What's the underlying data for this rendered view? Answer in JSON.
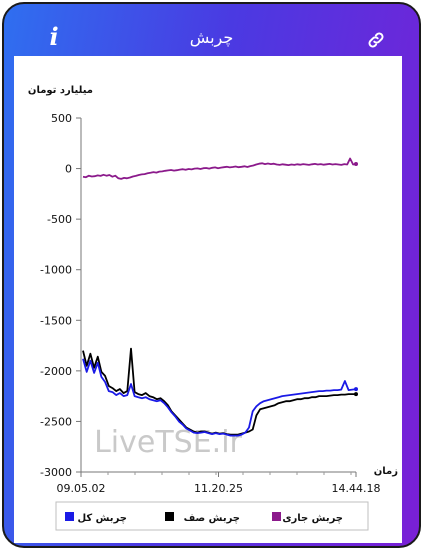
{
  "header": {
    "title": "چربش",
    "info_icon": "info-icon",
    "link_icon": "link-icon"
  },
  "chart_data": {
    "type": "line",
    "ylabel": "میلیارد تومان",
    "xlabel": "زمان",
    "ylim": [
      -3000,
      500
    ],
    "yticks": [
      500,
      0,
      -500,
      -1000,
      -1500,
      -2000,
      -2500,
      -3000
    ],
    "ytick_labels": [
      "500",
      "0",
      "-500",
      "-1000",
      "-1500",
      "-2000",
      "-2500",
      "-3000"
    ],
    "x_tick_labels": [
      "09.05.02",
      "11.20.25",
      "14.44.18"
    ],
    "grid": false,
    "legend_position": "bottom",
    "watermark": "LiveTSE.ir",
    "series": [
      {
        "name": "چربش جاری",
        "color": "#8b1a8b",
        "values": [
          -80,
          -85,
          -70,
          -78,
          -75,
          -68,
          -72,
          -62,
          -70,
          -64,
          -80,
          -70,
          -95,
          -102,
          -92,
          -96,
          -88,
          -78,
          -72,
          -64,
          -58,
          -55,
          -47,
          -42,
          -35,
          -40,
          -30,
          -28,
          -22,
          -18,
          -14,
          -20,
          -16,
          -10,
          -6,
          -12,
          -4,
          -8,
          0,
          2,
          -4,
          4,
          6,
          0,
          8,
          12,
          4,
          10,
          14,
          18,
          12,
          16,
          20,
          14,
          18,
          22,
          16,
          24,
          30,
          40,
          48,
          52,
          44,
          50,
          44,
          48,
          40,
          36,
          42,
          38,
          34,
          40,
          36,
          42,
          38,
          44,
          40,
          36,
          42,
          46,
          40,
          44,
          38,
          42,
          46,
          40,
          44,
          40,
          36,
          44,
          40,
          100,
          40,
          45
        ]
      },
      {
        "name": "چربش صف",
        "color": "#000000",
        "values": [
          -1800,
          -1950,
          -1830,
          -1970,
          -1860,
          -2010,
          -2050,
          -2150,
          -2170,
          -2200,
          -2180,
          -2220,
          -2200,
          -1780,
          -2210,
          -2230,
          -2240,
          -2220,
          -2250,
          -2260,
          -2280,
          -2270,
          -2300,
          -2340,
          -2400,
          -2440,
          -2480,
          -2520,
          -2560,
          -2580,
          -2600,
          -2610,
          -2600,
          -2600,
          -2610,
          -2620,
          -2610,
          -2620,
          -2615,
          -2625,
          -2630,
          -2630,
          -2630,
          -2620,
          -2610,
          -2600,
          -2580,
          -2440,
          -2380,
          -2370,
          -2360,
          -2350,
          -2340,
          -2320,
          -2310,
          -2300,
          -2300,
          -2290,
          -2280,
          -2280,
          -2270,
          -2270,
          -2260,
          -2260,
          -2250,
          -2250,
          -2250,
          -2245,
          -2240,
          -2240,
          -2235,
          -2235,
          -2230,
          -2230,
          -2230
        ]
      },
      {
        "name": "چربش کل",
        "color": "#1a1ae6",
        "values": [
          -1880,
          -2010,
          -1900,
          -2020,
          -1920,
          -2060,
          -2110,
          -2200,
          -2210,
          -2240,
          -2220,
          -2250,
          -2240,
          -2130,
          -2250,
          -2260,
          -2270,
          -2260,
          -2280,
          -2290,
          -2300,
          -2290,
          -2320,
          -2360,
          -2410,
          -2450,
          -2500,
          -2530,
          -2570,
          -2590,
          -2610,
          -2615,
          -2610,
          -2605,
          -2615,
          -2625,
          -2615,
          -2625,
          -2620,
          -2630,
          -2640,
          -2640,
          -2640,
          -2630,
          -2610,
          -2560,
          -2400,
          -2350,
          -2320,
          -2300,
          -2290,
          -2280,
          -2270,
          -2260,
          -2250,
          -2245,
          -2240,
          -2235,
          -2230,
          -2225,
          -2220,
          -2215,
          -2210,
          -2205,
          -2200,
          -2200,
          -2195,
          -2195,
          -2190,
          -2190,
          -2185,
          -2100,
          -2190,
          -2185,
          -2180
        ]
      }
    ]
  }
}
